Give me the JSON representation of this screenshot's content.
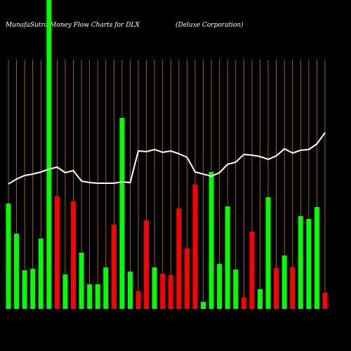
{
  "chart_data": {
    "type": "bar_line",
    "title": "MunafaSutra Money Flow Charts for DLX",
    "subtitle": "(Deluxe Corporation)",
    "ylim": [
      0,
      440
    ],
    "grid": true,
    "grid_color": "#c87800",
    "line_color": "#ffffff",
    "bars": {
      "values": [
        150,
        107,
        55,
        57,
        100,
        440,
        160,
        49,
        153,
        80,
        35,
        35,
        59,
        120,
        272,
        53,
        25,
        126,
        59,
        50,
        48,
        143,
        86,
        177,
        10,
        195,
        64,
        146,
        56,
        16,
        110,
        28,
        159,
        58,
        76,
        59,
        132,
        128,
        145,
        23
      ],
      "colors": [
        "#00ff00",
        "#00ff00",
        "#00ff00",
        "#00ff00",
        "#00ff00",
        "#00ff00",
        "#ff0000",
        "#00ff00",
        "#ff0000",
        "#00ff00",
        "#00ff00",
        "#00ff00",
        "#00ff00",
        "#ff0000",
        "#00ff00",
        "#00ff00",
        "#ff0000",
        "#ff0000",
        "#00ff00",
        "#ff0000",
        "#ff0000",
        "#ff0000",
        "#ff0000",
        "#ff0000",
        "#00ff00",
        "#00ff00",
        "#00ff00",
        "#00ff00",
        "#00ff00",
        "#ff0000",
        "#ff0000",
        "#00ff00",
        "#00ff00",
        "#ff0000",
        "#00ff00",
        "#ff0000",
        "#00ff00",
        "#00ff00",
        "#00ff00",
        "#ff0000"
      ]
    },
    "line": {
      "values": [
        178,
        185,
        190,
        192,
        195,
        199,
        202,
        194,
        197,
        182,
        180,
        179,
        179,
        179,
        181,
        180,
        225,
        224,
        227,
        223,
        225,
        221,
        216,
        195,
        192,
        189,
        194,
        206,
        209,
        220,
        219,
        217,
        213,
        218,
        228,
        222,
        226,
        227,
        235,
        251
      ]
    }
  }
}
